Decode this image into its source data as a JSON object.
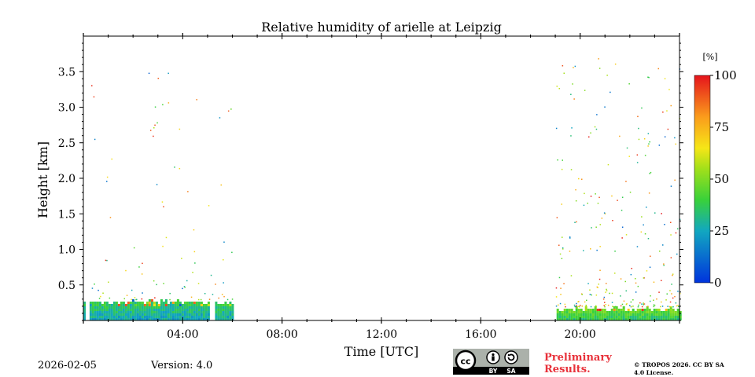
{
  "chart_data": {
    "type": "heatmap",
    "title": "Relative humidity of arielle at Leipzig",
    "xlabel": "Time [UTC]",
    "ylabel": "Height [km]",
    "x_unit": "hours UTC",
    "xlim": [
      0,
      24
    ],
    "ylim": [
      0,
      4.0
    ],
    "x_ticks": [
      {
        "value": 4,
        "label": "04:00"
      },
      {
        "value": 8,
        "label": "08:00"
      },
      {
        "value": 12,
        "label": "12:00"
      },
      {
        "value": 16,
        "label": "16:00"
      },
      {
        "value": 20,
        "label": "20:00"
      }
    ],
    "y_ticks": [
      {
        "value": 0.5,
        "label": "0.5"
      },
      {
        "value": 1.0,
        "label": "1.0"
      },
      {
        "value": 1.5,
        "label": "1.5"
      },
      {
        "value": 2.0,
        "label": "2.0"
      },
      {
        "value": 2.5,
        "label": "2.5"
      },
      {
        "value": 3.0,
        "label": "3.0"
      },
      {
        "value": 3.5,
        "label": "3.5"
      }
    ],
    "colorbar": {
      "unit_label": "[%]",
      "range": [
        0,
        100
      ],
      "ticks": [
        {
          "value": 0,
          "label": "0"
        },
        {
          "value": 25,
          "label": "25"
        },
        {
          "value": 50,
          "label": "50"
        },
        {
          "value": 75,
          "label": "75"
        },
        {
          "value": 100,
          "label": "100"
        }
      ]
    },
    "data_blocks": [
      {
        "name": "night-block-a",
        "t_start": 0.0,
        "t_end": 0.05,
        "h_top": 0.3,
        "rh_low": 22,
        "rh_high": 40
      },
      {
        "name": "night-block-b",
        "t_start": 0.25,
        "t_end": 5.05,
        "h_top": 0.28,
        "rh_low": 20,
        "rh_high": 45
      },
      {
        "name": "night-block-c",
        "t_start": 5.3,
        "t_end": 6.0,
        "h_top": 0.26,
        "rh_low": 20,
        "rh_high": 45
      },
      {
        "name": "evening-block",
        "t_start": 19.05,
        "t_end": 24.0,
        "h_top": 0.18,
        "rh_low": 30,
        "rh_high": 55
      }
    ],
    "scatter_regions": [
      {
        "name": "night-scatter",
        "t_start": 0.3,
        "t_end": 6.0,
        "h_min": 0.3,
        "h_max": 3.5,
        "rh_low": 10,
        "rh_high": 100
      },
      {
        "name": "evening-scatter",
        "t_start": 19.0,
        "t_end": 24.0,
        "h_min": 0.2,
        "h_max": 3.7,
        "rh_low": 10,
        "rh_high": 100
      }
    ]
  },
  "footer": {
    "date": "2026-02-05",
    "version": "Version: 4.0",
    "preliminary": "Preliminary Results.",
    "copyright": "© TROPOS 2026. CC BY SA 4.0 License.",
    "license_badge": {
      "cc": "cc",
      "by": "BY",
      "sa": "SA"
    }
  }
}
